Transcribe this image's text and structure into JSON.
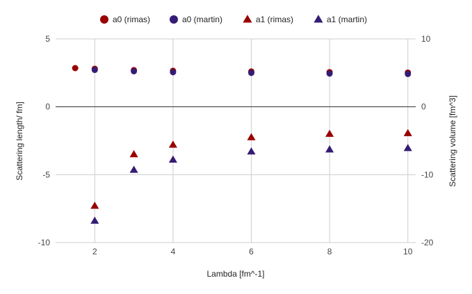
{
  "chart_data": {
    "type": "scatter",
    "title": "",
    "xlabel": "Lambda [fm^-1]",
    "ylabel": "Scattering length/ fm]",
    "y2label": "Scattering volume [fm^3]",
    "xlim": [
      1,
      10.2
    ],
    "ylim": [
      -10,
      5
    ],
    "y2lim": [
      -20,
      10
    ],
    "xticks": [
      "2",
      "4",
      "6",
      "8",
      "10"
    ],
    "yticks": [
      "5",
      "0",
      "-5",
      "-10"
    ],
    "y2ticks": [
      "10",
      "0",
      "-10",
      "-20"
    ],
    "grid": "vertical",
    "zero_line": true,
    "legend_position": "top",
    "series": [
      {
        "name": "a0 (rimas)",
        "axis": "left",
        "marker": "circle",
        "color": "#990000",
        "points": [
          [
            1.5,
            2.85
          ],
          [
            2,
            2.8
          ],
          [
            3,
            2.7
          ],
          [
            4,
            2.65
          ],
          [
            6,
            2.6
          ],
          [
            8,
            2.55
          ],
          [
            10,
            2.52
          ]
        ]
      },
      {
        "name": "a0 (martin)",
        "axis": "left",
        "marker": "circle",
        "color": "#351c75",
        "points": [
          [
            2,
            2.72
          ],
          [
            3,
            2.62
          ],
          [
            4,
            2.55
          ],
          [
            6,
            2.5
          ],
          [
            8,
            2.45
          ],
          [
            10,
            2.42
          ]
        ]
      },
      {
        "name": "a1 (rimas)",
        "axis": "right",
        "marker": "triangle",
        "color": "#990000",
        "points": [
          [
            2,
            -14.6
          ],
          [
            3,
            -7.0
          ],
          [
            4,
            -5.6
          ],
          [
            6,
            -4.5
          ],
          [
            8,
            -4.0
          ],
          [
            10,
            -3.9
          ]
        ]
      },
      {
        "name": "a1 (martin)",
        "axis": "right",
        "marker": "triangle",
        "color": "#351c75",
        "points": [
          [
            2,
            -16.8
          ],
          [
            3,
            -9.3
          ],
          [
            4,
            -7.8
          ],
          [
            6,
            -6.6
          ],
          [
            8,
            -6.3
          ],
          [
            10,
            -6.1
          ]
        ]
      }
    ]
  }
}
